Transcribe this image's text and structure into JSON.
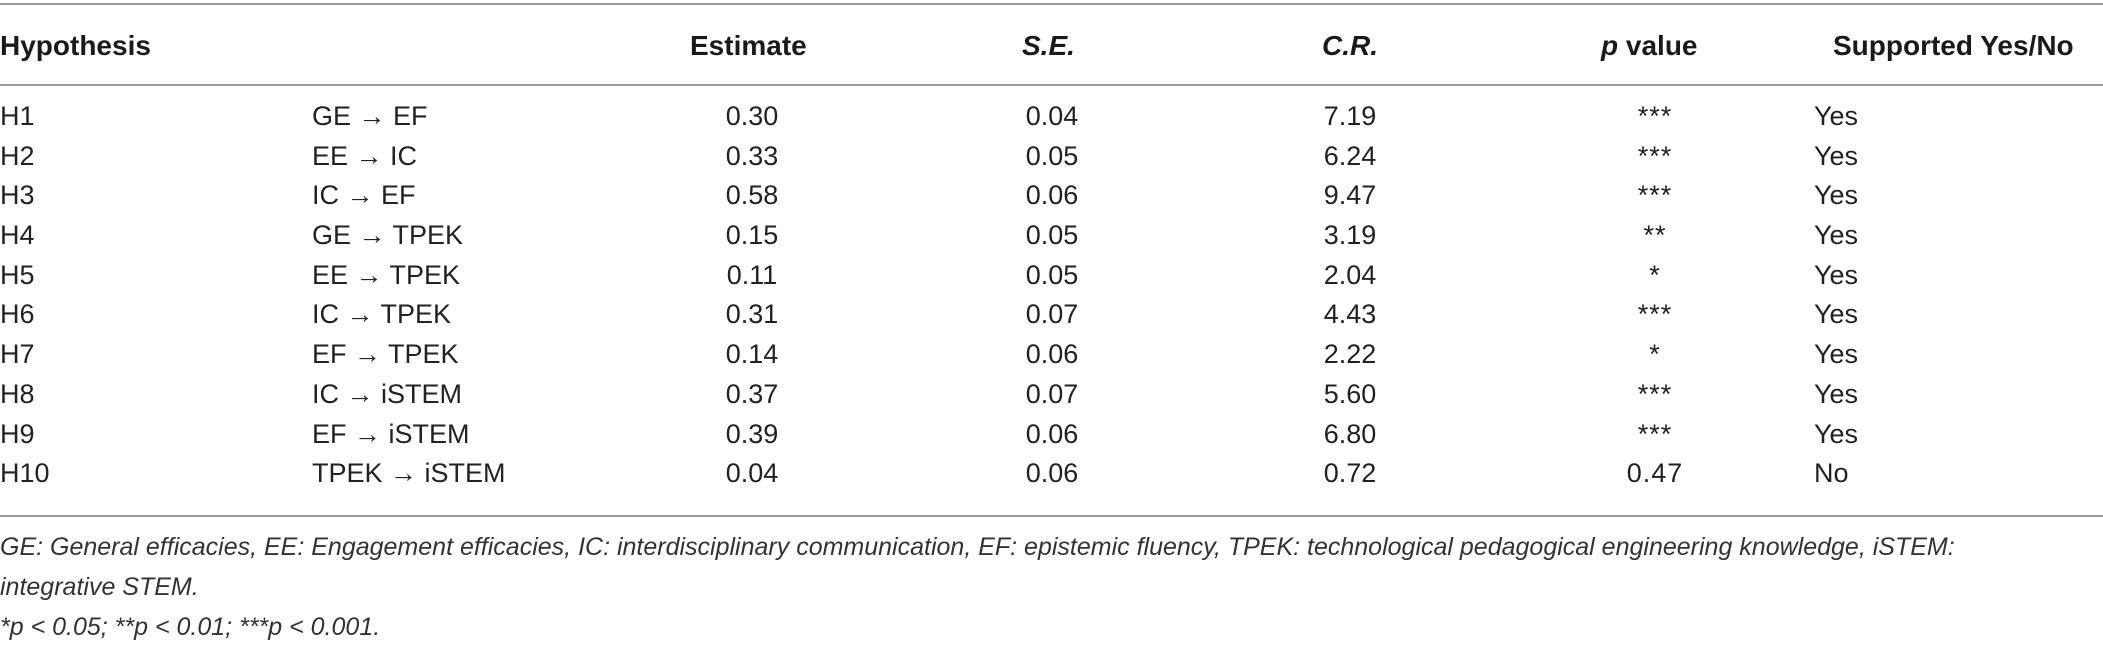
{
  "header": {
    "hypothesis": "Hypothesis",
    "estimate": "Estimate",
    "se": "S.E.",
    "cr": "C.R.",
    "p_italic": "p",
    "p_rest": " value",
    "supported": "Supported Yes/No"
  },
  "rows": [
    {
      "id": "H1",
      "path": "GE → EF",
      "estimate": "0.30",
      "se": "0.04",
      "cr": "7.19",
      "p": "***",
      "supported": "Yes"
    },
    {
      "id": "H2",
      "path": "EE → IC",
      "estimate": "0.33",
      "se": "0.05",
      "cr": "6.24",
      "p": "***",
      "supported": "Yes"
    },
    {
      "id": "H3",
      "path": "IC → EF",
      "estimate": "0.58",
      "se": "0.06",
      "cr": "9.47",
      "p": "***",
      "supported": "Yes"
    },
    {
      "id": "H4",
      "path": "GE → TPEK",
      "estimate": "0.15",
      "se": "0.05",
      "cr": "3.19",
      "p": "**",
      "supported": "Yes"
    },
    {
      "id": "H5",
      "path": "EE → TPEK",
      "estimate": "0.11",
      "se": "0.05",
      "cr": "2.04",
      "p": "*",
      "supported": "Yes"
    },
    {
      "id": "H6",
      "path": "IC → TPEK",
      "estimate": "0.31",
      "se": "0.07",
      "cr": "4.43",
      "p": "***",
      "supported": "Yes"
    },
    {
      "id": "H7",
      "path": "EF → TPEK",
      "estimate": "0.14",
      "se": "0.06",
      "cr": "2.22",
      "p": "*",
      "supported": "Yes"
    },
    {
      "id": "H8",
      "path": "IC → iSTEM",
      "estimate": "0.37",
      "se": "0.07",
      "cr": "5.60",
      "p": "***",
      "supported": "Yes"
    },
    {
      "id": "H9",
      "path": "EF → iSTEM",
      "estimate": "0.39",
      "se": "0.06",
      "cr": "6.80",
      "p": "***",
      "supported": "Yes"
    },
    {
      "id": "H10",
      "path": "TPEK → iSTEM",
      "estimate": "0.04",
      "se": "0.06",
      "cr": "0.72",
      "p": "0.47",
      "supported": "No"
    }
  ],
  "notes": {
    "abbreviations_line1": "GE: General efficacies, EE: Engagement efficacies, IC: interdisciplinary communication, EF: epistemic fluency, TPEK: technological pedagogical engineering knowledge, iSTEM:",
    "abbreviations_line2": "integrative STEM.",
    "significance": "*p < 0.05; **p < 0.01; ***p < 0.001."
  }
}
